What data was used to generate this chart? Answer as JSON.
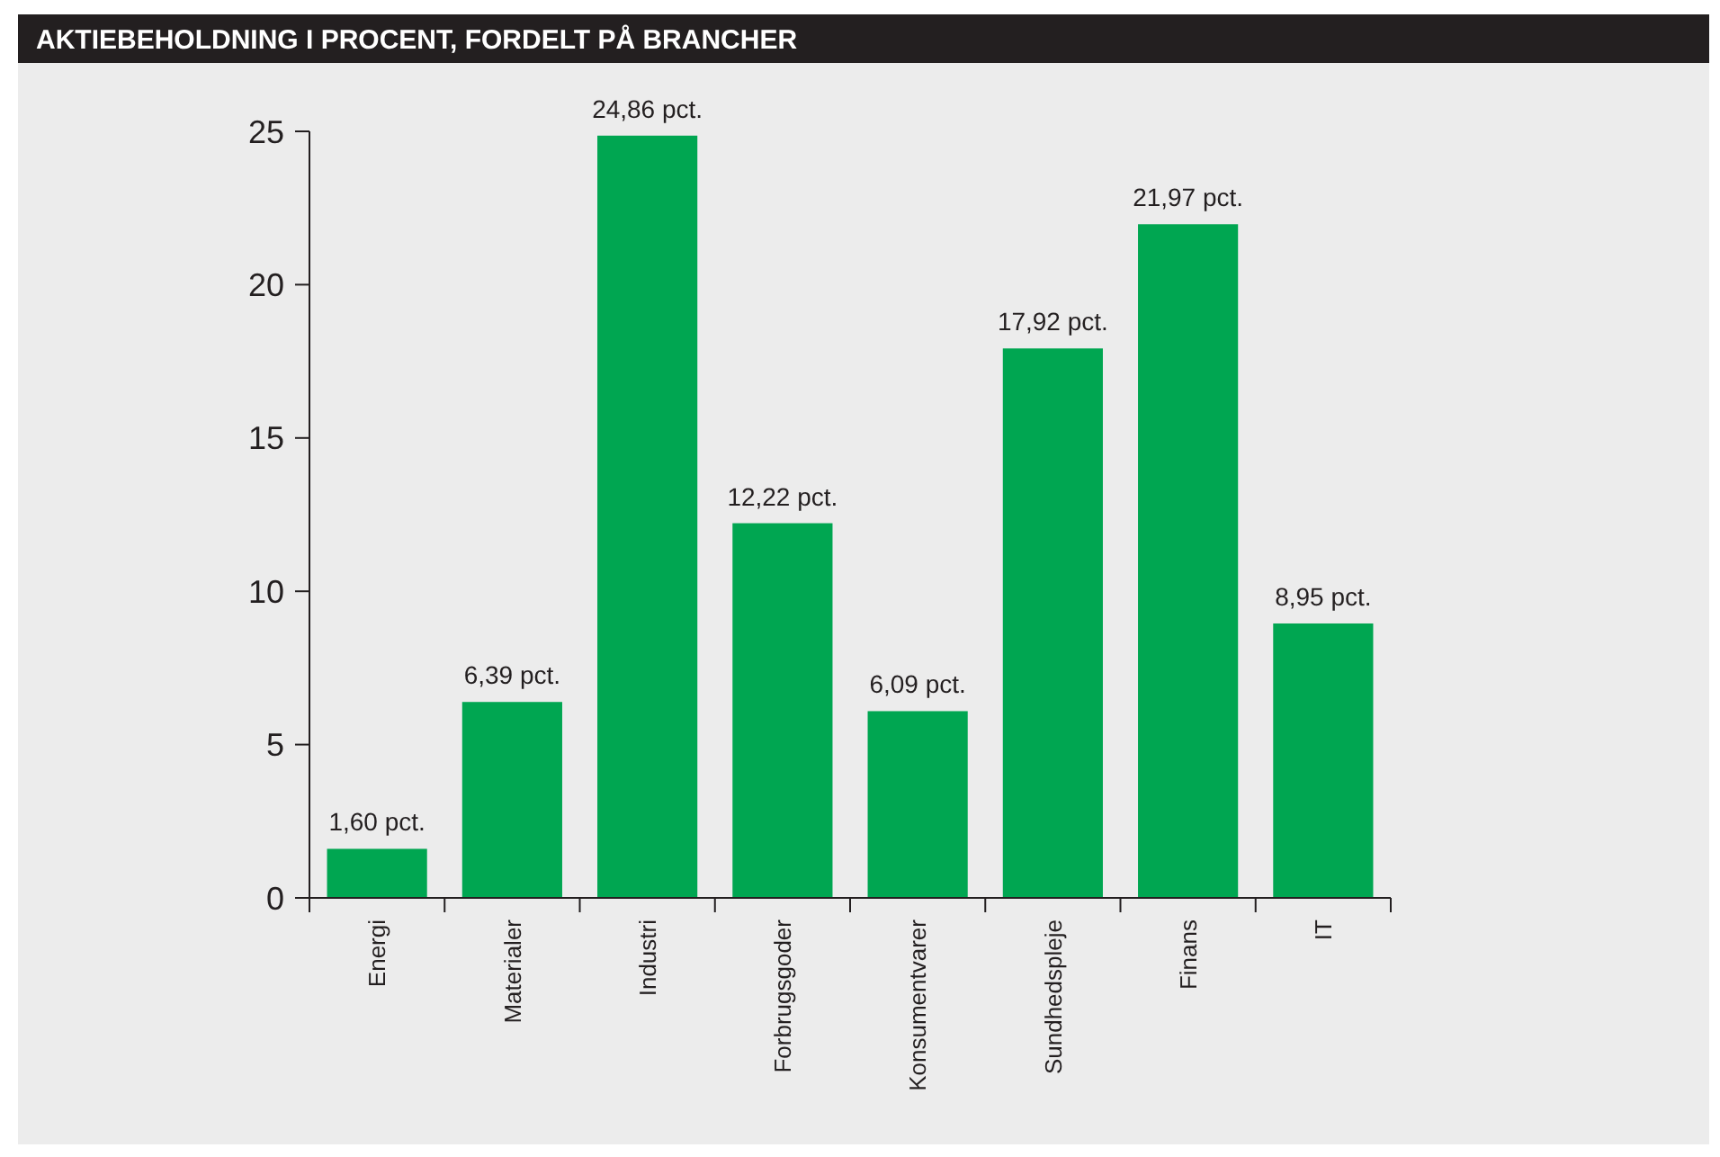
{
  "chart_data": {
    "type": "bar",
    "title": "AKTIEBEHOLDNING I PROCENT, FORDELT PÅ BRANCHER",
    "categories": [
      "Energi",
      "Materialer",
      "Industri",
      "Forbrugsgoder",
      "Konsumentvarer",
      "Sundhedspleje",
      "Finans",
      "IT"
    ],
    "values": [
      1.6,
      6.39,
      24.86,
      12.22,
      6.09,
      17.92,
      21.97,
      8.95
    ],
    "value_labels": [
      "1,60 pct.",
      "6,39 pct.",
      "24,86 pct.",
      "12,22 pct.",
      "6,09 pct.",
      "17,92 pct.",
      "21,97 pct.",
      "8,95 pct."
    ],
    "color": "#00a651",
    "ylim": [
      0,
      25
    ],
    "yticks": [
      0,
      5,
      10,
      15,
      20,
      25
    ],
    "grid": false
  }
}
